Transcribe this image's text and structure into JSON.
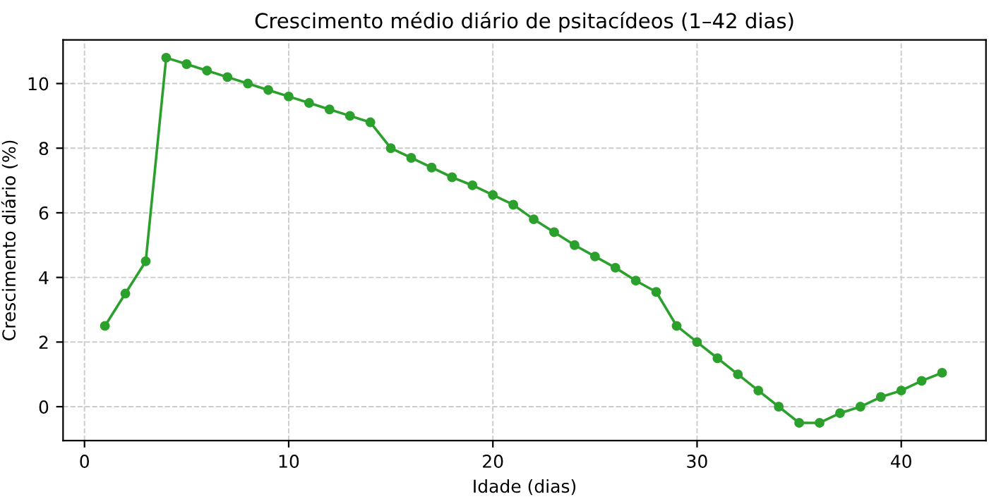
{
  "chart_data": {
    "type": "line",
    "title": "Crescimento médio diário de psitacídeos (1–42 dias)",
    "xlabel": "Idade (dias)",
    "ylabel": "Crescimento diário (%)",
    "x": [
      1,
      2,
      3,
      4,
      5,
      6,
      7,
      8,
      9,
      10,
      11,
      12,
      13,
      14,
      15,
      16,
      17,
      18,
      19,
      20,
      21,
      22,
      23,
      24,
      25,
      26,
      27,
      28,
      29,
      30,
      31,
      32,
      33,
      34,
      35,
      36,
      37,
      38,
      39,
      40,
      41,
      42
    ],
    "series": [
      {
        "color": "#2ca02c",
        "values": [
          2.5,
          3.5,
          4.5,
          10.8,
          10.6,
          10.4,
          10.2,
          10.0,
          9.8,
          9.6,
          9.4,
          9.2,
          9.0,
          8.8,
          8.0,
          7.7,
          7.4,
          7.1,
          6.85,
          6.55,
          6.25,
          5.8,
          5.4,
          5.0,
          4.65,
          4.3,
          3.9,
          3.55,
          2.5,
          2.0,
          1.5,
          1.0,
          0.5,
          0.0,
          -0.5,
          -0.5,
          -0.2,
          0.0,
          0.3,
          0.5,
          0.8,
          1.05
        ]
      }
    ],
    "xlim": [
      -1.05,
      44.15
    ],
    "ylim": [
      -1.05,
      11.35
    ],
    "xticks": [
      0,
      10,
      20,
      30,
      40
    ],
    "yticks": [
      0,
      2,
      4,
      6,
      8,
      10
    ],
    "grid": true,
    "marker": "circle",
    "line_style": "solid"
  }
}
